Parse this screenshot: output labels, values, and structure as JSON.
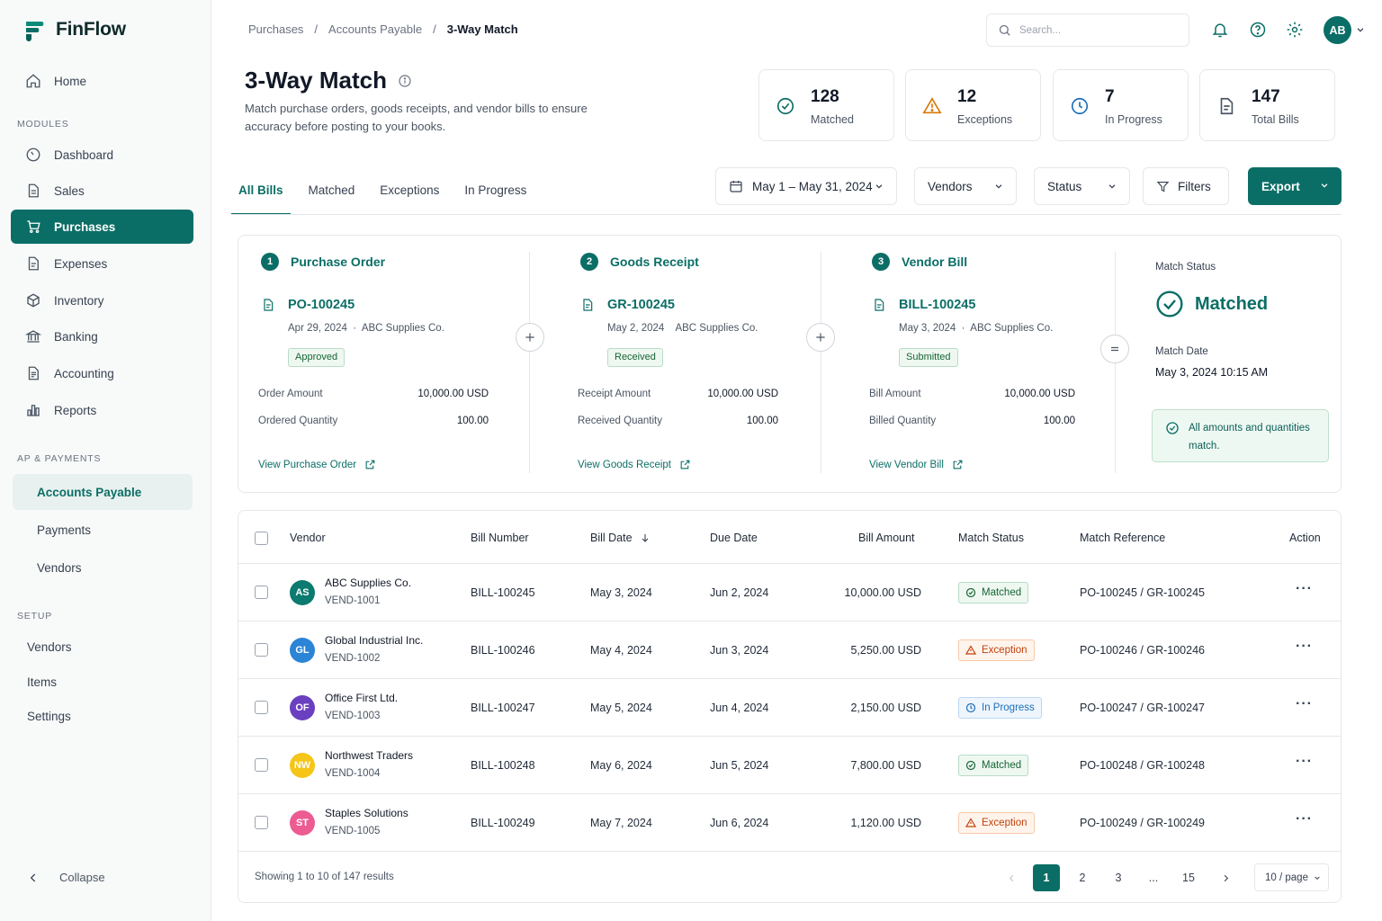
{
  "app": {
    "name": "FinFlow"
  },
  "sidebar": {
    "home": "Home",
    "modules_label": "MODULES",
    "modules": [
      "Dashboard",
      "Sales",
      "Purchases",
      "Expenses",
      "Inventory",
      "Banking",
      "Accounting",
      "Reports"
    ],
    "ap_label": "AP & PAYMENTS",
    "ap_items": [
      "Accounts Payable",
      "Payments",
      "Vendors"
    ],
    "setup_label": "SETUP",
    "setup_items": [
      "Vendors",
      "Items",
      "Settings"
    ],
    "collapse": "Collapse"
  },
  "header": {
    "breadcrumb": [
      "Purchases",
      "Accounts Payable",
      "3-Way Match"
    ],
    "search_placeholder": "Search...",
    "avatar_initials": "AB"
  },
  "page": {
    "title": "3-Way Match",
    "description": "Match purchase orders, goods receipts, and vendor bills to ensure accuracy before posting to your books."
  },
  "stats": [
    {
      "value": "128",
      "label": "Matched",
      "color": "#0b6e66"
    },
    {
      "value": "12",
      "label": "Exceptions",
      "color": "#d97706"
    },
    {
      "value": "7",
      "label": "In Progress",
      "color": "#1d6fb8"
    },
    {
      "value": "147",
      "label": "Total Bills",
      "color": "#4b5563"
    }
  ],
  "tabs": [
    "All Bills",
    "Matched",
    "Exceptions",
    "In Progress"
  ],
  "filters": {
    "date_range": "May 1 – May 31, 2024",
    "vendors": "Vendors",
    "status": "Status",
    "filters": "Filters",
    "export": "Export"
  },
  "match": {
    "po": {
      "step": "1",
      "title": "Purchase Order",
      "id": "PO-100245",
      "date": "Apr 29, 2024",
      "vendor": "ABC Supplies Co.",
      "status": "Approved",
      "amount_label": "Order Amount",
      "amount": "10,000.00 USD",
      "qty_label": "Ordered Quantity",
      "qty": "100.00",
      "link": "View Purchase Order"
    },
    "gr": {
      "step": "2",
      "title": "Goods Receipt",
      "id": "GR-100245",
      "date": "May 2, 2024",
      "vendor": "ABC Supplies Co.",
      "status": "Received",
      "amount_label": "Receipt Amount",
      "amount": "10,000.00 USD",
      "qty_label": "Received Quantity",
      "qty": "100.00",
      "link": "View Goods Receipt"
    },
    "bill": {
      "step": "3",
      "title": "Vendor Bill",
      "id": "BILL-100245",
      "date": "May 3, 2024",
      "vendor": "ABC Supplies Co.",
      "status": "Submitted",
      "amount_label": "Bill Amount",
      "amount": "10,000.00 USD",
      "qty_label": "Billed Quantity",
      "qty": "100.00",
      "link": "View Vendor Bill"
    },
    "status_label": "Match Status",
    "status_value": "Matched",
    "date_label": "Match Date",
    "date_value": "May 3, 2024 10:15 AM",
    "message": "All amounts and quantities match."
  },
  "table": {
    "columns": [
      "Vendor",
      "Bill Number",
      "Bill Date",
      "Due Date",
      "Bill Amount",
      "Match Status",
      "Match Reference",
      "Action"
    ],
    "rows": [
      {
        "initials": "AS",
        "avatar_color": "#0b7a6f",
        "vendor": "ABC Supplies Co.",
        "code": "VEND-1001",
        "bill": "BILL-100245",
        "bill_date": "May 3, 2024",
        "due_date": "Jun 2, 2024",
        "amount": "10,000.00 USD",
        "status": "Matched",
        "status_type": "matched",
        "reference": "PO-100245 / GR-100245"
      },
      {
        "initials": "GL",
        "avatar_color": "#2b84d6",
        "vendor": "Global Industrial Inc.",
        "code": "VEND-1002",
        "bill": "BILL-100246",
        "bill_date": "May 4, 2024",
        "due_date": "Jun 3, 2024",
        "amount": "5,250.00 USD",
        "status": "Exception",
        "status_type": "exception",
        "reference": "PO-100246 / GR-100246"
      },
      {
        "initials": "OF",
        "avatar_color": "#6a3fc0",
        "vendor": "Office First Ltd.",
        "code": "VEND-1003",
        "bill": "BILL-100247",
        "bill_date": "May 5, 2024",
        "due_date": "Jun 4, 2024",
        "amount": "2,150.00 USD",
        "status": "In Progress",
        "status_type": "progress",
        "reference": "PO-100247 / GR-100247"
      },
      {
        "initials": "NW",
        "avatar_color": "#f5c518",
        "vendor": "Northwest Traders",
        "code": "VEND-1004",
        "bill": "BILL-100248",
        "bill_date": "May 6, 2024",
        "due_date": "Jun 5, 2024",
        "amount": "7,800.00 USD",
        "status": "Matched",
        "status_type": "matched",
        "reference": "PO-100248 / GR-100248"
      },
      {
        "initials": "ST",
        "avatar_color": "#ec5b92",
        "vendor": "Staples Solutions",
        "code": "VEND-1005",
        "bill": "BILL-100249",
        "bill_date": "May 7, 2024",
        "due_date": "Jun 6, 2024",
        "amount": "1,120.00 USD",
        "status": "Exception",
        "status_type": "exception",
        "reference": "PO-100249 / GR-100249"
      }
    ]
  },
  "pagination": {
    "showing": "Showing 1 to 10 of 147 results",
    "pages": [
      "1",
      "2",
      "3",
      "...",
      "15"
    ],
    "per_page": "10 / page"
  }
}
